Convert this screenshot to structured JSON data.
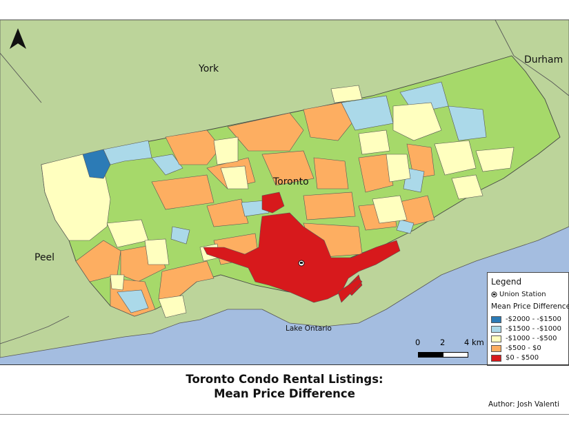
{
  "map": {
    "title": "Toronto Condo Rental Listings:",
    "title_line2": "Mean Price Difference",
    "author": "Author: Josh Valenti",
    "labels": {
      "york": "York",
      "durham": "Durham",
      "peel": "Peel",
      "toronto": "Toronto",
      "lake": "Lake Ontario"
    },
    "icons": [
      "north-arrow-icon",
      "union-station-icon"
    ],
    "colors": {
      "water": "#a4bde0",
      "land": "#bcd49a",
      "class1": "#2c7bb6",
      "class2": "#abd9e9",
      "class3": "#ffffbf",
      "class4": "#fdae61",
      "class5": "#d7191c",
      "green_fill": "#a6d96a"
    }
  },
  "legend": {
    "title": "Legend",
    "station_label": "Union Station",
    "subtitle": "Mean Price Difference",
    "classes": [
      {
        "label": "-$2000 - -$1500",
        "color": "#2c7bb6"
      },
      {
        "label": "-$1500 - -$1000",
        "color": "#abd9e9"
      },
      {
        "label": "-$1000 - -$500",
        "color": "#ffffbf"
      },
      {
        "label": "-$500 - $0",
        "color": "#fdae61"
      },
      {
        "label": "$0 - $500",
        "color": "#d7191c"
      }
    ]
  },
  "scale": {
    "t0": "0",
    "t1": "2",
    "t2": "4 km"
  }
}
